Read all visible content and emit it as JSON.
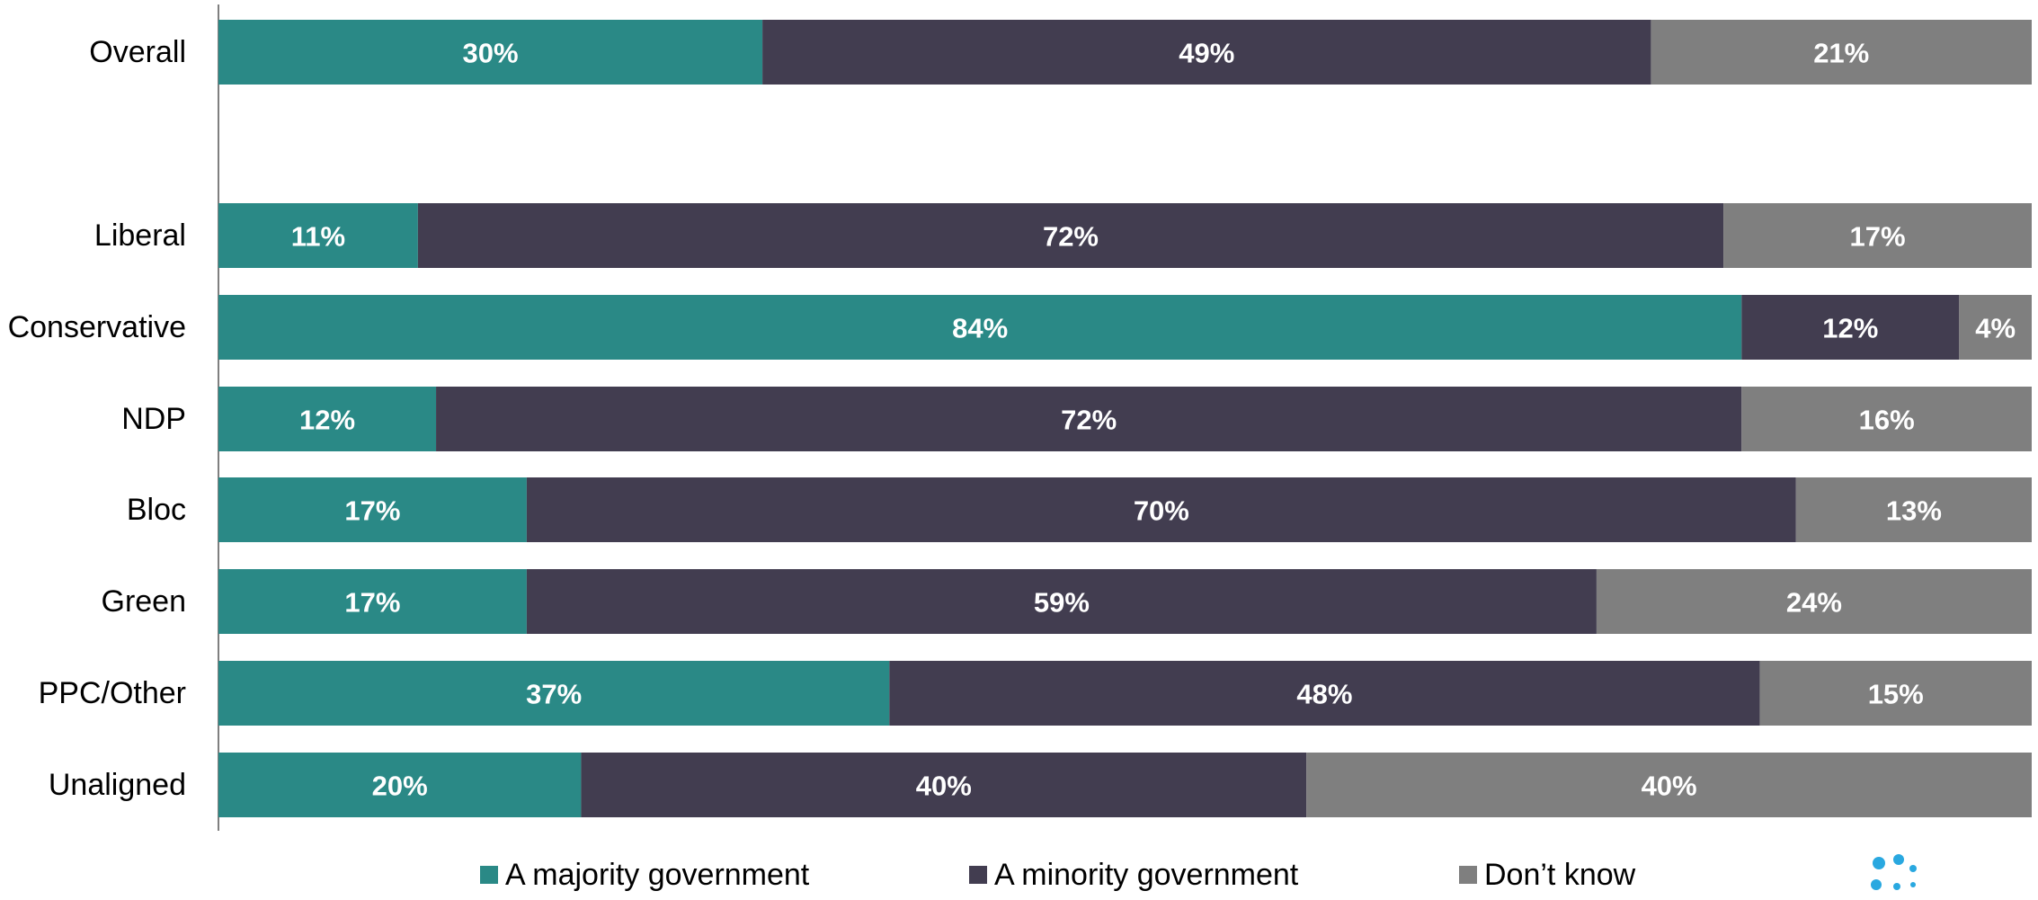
{
  "chart_data": {
    "type": "bar",
    "orientation": "horizontal",
    "stacked": true,
    "categories": [
      "Overall",
      "Liberal",
      "Conservative",
      "NDP",
      "Bloc",
      "Green",
      "PPC/Other",
      "Unaligned"
    ],
    "series": [
      {
        "name": "A majority government",
        "color": "#2a8986",
        "values": [
          30,
          11,
          84,
          12,
          17,
          17,
          37,
          20
        ],
        "labels": [
          "30%",
          "11%",
          "84%",
          "12%",
          "17%",
          "17%",
          "37%",
          "20%"
        ]
      },
      {
        "name": "A minority government",
        "color": "#423d50",
        "values": [
          49,
          72,
          12,
          72,
          70,
          59,
          48,
          40
        ],
        "labels": [
          "49%",
          "72%",
          "12%",
          "72%",
          "70%",
          "59%",
          "48%",
          "40%"
        ]
      },
      {
        "name": "Don’t know",
        "color": "#7f7f7f",
        "values": [
          21,
          17,
          4,
          16,
          13,
          24,
          15,
          40
        ],
        "labels": [
          "21%",
          "17%",
          "4%",
          "16%",
          "13%",
          "24%",
          "15%",
          "40%"
        ]
      }
    ],
    "xlim": [
      0,
      100
    ],
    "legend_position": "bottom",
    "grid": false
  },
  "logo": {
    "icon": "dots-logo-icon",
    "color": "#29a8e0"
  }
}
